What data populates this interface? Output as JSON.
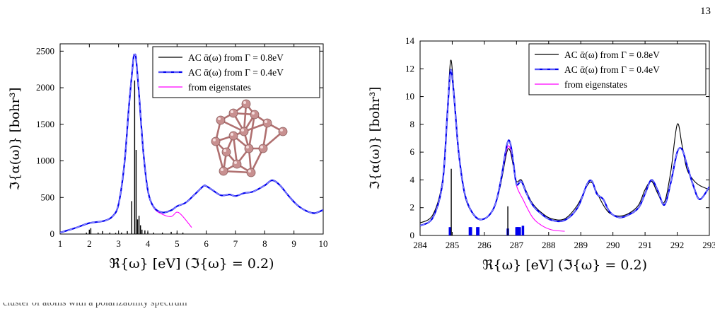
{
  "page": {
    "number": "13"
  },
  "colors": {
    "ac_08": "#000000",
    "ac_04": "#0000ee",
    "ac_04_dash": "#8888ff",
    "eigen": "#ff00ff",
    "molecule_node": "#c89090",
    "molecule_edge": "#b07070"
  },
  "chart_data": [
    {
      "type": "line",
      "xlabel": "ℜ{ω}  [eV]   (ℑ{ω} = 0.2)",
      "ylabel": "ℑ{α(ω)}  [bohr³]",
      "xlim": [
        1,
        10
      ],
      "ylim": [
        0,
        2600
      ],
      "xticks": [
        "1",
        "2",
        "3",
        "4",
        "5",
        "6",
        "7",
        "8",
        "9",
        "10"
      ],
      "yticks": [
        "0",
        "500",
        "1000",
        "1500",
        "2000",
        "2500"
      ],
      "xtick_values": [
        1,
        2,
        3,
        4,
        5,
        6,
        7,
        8,
        9,
        10
      ],
      "ytick_values": [
        0,
        500,
        1000,
        1500,
        2000,
        2500
      ],
      "legend_position": "top-right",
      "legend": [
        {
          "label": "AC  ᾱ(ω) from Γ = 0.8eV",
          "style": "solid-black"
        },
        {
          "label": "AC  ᾱ(ω) from Γ = 0.4eV",
          "style": "dashed-blue"
        },
        {
          "label": "from eigenstates",
          "style": "solid-magenta"
        }
      ],
      "series": [
        {
          "name": "AC ᾱ(ω) from Γ = 0.8eV",
          "x": [
            1.0,
            1.5,
            2.0,
            2.5,
            2.8,
            3.0,
            3.2,
            3.35,
            3.5,
            3.55,
            3.6,
            3.7,
            3.85,
            4.0,
            4.2,
            4.5,
            4.8,
            5.0,
            5.3,
            5.6,
            5.9,
            6.0,
            6.2,
            6.5,
            6.8,
            7.0,
            7.3,
            7.6,
            8.0,
            8.25,
            8.5,
            8.8,
            9.1,
            9.4,
            9.7,
            10.0
          ],
          "y": [
            20,
            80,
            150,
            180,
            240,
            400,
            950,
            1700,
            2350,
            2440,
            2380,
            1900,
            1100,
            600,
            370,
            300,
            330,
            380,
            430,
            540,
            650,
            650,
            600,
            530,
            540,
            520,
            560,
            580,
            660,
            730,
            670,
            530,
            400,
            320,
            290,
            330
          ]
        },
        {
          "name": "AC ᾱ(ω) from Γ = 0.4eV",
          "x": [
            1.0,
            1.5,
            2.0,
            2.5,
            2.8,
            3.0,
            3.2,
            3.35,
            3.5,
            3.55,
            3.6,
            3.7,
            3.85,
            4.0,
            4.2,
            4.5,
            4.8,
            5.0,
            5.3,
            5.6,
            5.9,
            6.0,
            6.2,
            6.5,
            6.8,
            7.0,
            7.3,
            7.6,
            8.0,
            8.25,
            8.5,
            8.8,
            9.1,
            9.4,
            9.7,
            10.0
          ],
          "y": [
            20,
            80,
            150,
            180,
            245,
            410,
            960,
            1720,
            2370,
            2450,
            2390,
            1910,
            1110,
            600,
            370,
            295,
            325,
            380,
            430,
            540,
            655,
            655,
            605,
            530,
            540,
            520,
            560,
            580,
            665,
            735,
            675,
            530,
            400,
            320,
            285,
            330
          ]
        },
        {
          "name": "from eigenstates",
          "x": [
            1.0,
            1.5,
            2.0,
            2.5,
            2.8,
            3.0,
            3.2,
            3.35,
            3.5,
            3.55,
            3.6,
            3.7,
            3.85,
            4.0,
            4.2,
            4.5,
            4.8,
            5.0,
            5.2,
            5.5
          ],
          "y": [
            20,
            80,
            150,
            180,
            245,
            410,
            960,
            1720,
            2370,
            2440,
            2380,
            1900,
            1100,
            590,
            360,
            270,
            240,
            300,
            240,
            90
          ]
        }
      ],
      "sticks": {
        "x": [
          1.9,
          2.0,
          2.05,
          2.3,
          2.45,
          2.7,
          2.9,
          3.1,
          3.3,
          3.45,
          3.55,
          3.6,
          3.65,
          3.7,
          3.75,
          3.8,
          3.9,
          4.0,
          4.2,
          4.5,
          4.8,
          5.0,
          5.2
        ],
        "y": [
          20,
          60,
          80,
          20,
          40,
          20,
          15,
          20,
          40,
          450,
          2100,
          1150,
          200,
          250,
          120,
          60,
          50,
          30,
          20,
          20,
          30,
          20,
          20
        ]
      },
      "inset": "cluster-molecule"
    },
    {
      "type": "line",
      "xlabel": "ℜ{ω}  [eV]   (ℑ{ω} = 0.2)",
      "ylabel": "ℑ{α(ω)}  [bohr³]",
      "xlim": [
        284,
        293
      ],
      "ylim": [
        0,
        14
      ],
      "xticks": [
        "284",
        "285",
        "286",
        "287",
        "288",
        "289",
        "290",
        "291",
        "292",
        "293"
      ],
      "yticks": [
        "0",
        "2",
        "4",
        "6",
        "8",
        "10",
        "12",
        "14"
      ],
      "xtick_values": [
        284,
        285,
        286,
        287,
        288,
        289,
        290,
        291,
        292,
        293
      ],
      "ytick_values": [
        0,
        2,
        4,
        6,
        8,
        10,
        12,
        14
      ],
      "legend_position": "top-right",
      "legend": [
        {
          "label": "AC  ᾱ(ω) from Γ = 0.8eV",
          "style": "solid-black"
        },
        {
          "label": "AC  ᾱ(ω) from Γ = 0.4eV",
          "style": "dashed-blue"
        },
        {
          "label": "from eigenstates",
          "style": "solid-magenta"
        }
      ],
      "series": [
        {
          "name": "AC ᾱ(ω) from Γ = 0.8eV",
          "x": [
            284.0,
            284.4,
            284.7,
            284.85,
            284.95,
            285.05,
            285.2,
            285.4,
            285.7,
            286.0,
            286.3,
            286.5,
            286.7,
            286.8,
            286.9,
            287.0,
            287.15,
            287.3,
            287.5,
            287.8,
            288.1,
            288.5,
            288.9,
            289.2,
            289.35,
            289.5,
            289.7,
            289.9,
            290.2,
            290.5,
            290.8,
            291.0,
            291.2,
            291.4,
            291.6,
            291.8,
            292.0,
            292.15,
            292.3,
            292.5,
            292.7,
            293.0
          ],
          "y": [
            0.9,
            1.5,
            4.0,
            9.0,
            12.6,
            10.5,
            6.0,
            2.8,
            1.4,
            1.2,
            2.0,
            3.6,
            6.0,
            6.1,
            5.0,
            3.9,
            4.0,
            3.2,
            2.3,
            1.6,
            1.2,
            1.2,
            2.2,
            3.6,
            3.8,
            3.1,
            2.2,
            1.6,
            1.4,
            1.6,
            2.2,
            3.3,
            3.9,
            3.0,
            2.4,
            4.6,
            8.0,
            6.5,
            4.8,
            4.0,
            3.6,
            3.3
          ]
        },
        {
          "name": "AC ᾱ(ω) from Γ = 0.4eV",
          "x": [
            284.0,
            284.4,
            284.7,
            284.85,
            284.95,
            285.05,
            285.2,
            285.4,
            285.7,
            286.0,
            286.3,
            286.5,
            286.7,
            286.8,
            286.9,
            287.0,
            287.15,
            287.3,
            287.5,
            287.8,
            288.1,
            288.5,
            288.9,
            289.2,
            289.35,
            289.5,
            289.7,
            289.9,
            290.2,
            290.5,
            290.8,
            291.0,
            291.2,
            291.4,
            291.6,
            291.8,
            292.0,
            292.15,
            292.3,
            292.5,
            292.7,
            293.0
          ],
          "y": [
            0.7,
            1.3,
            3.8,
            8.8,
            11.9,
            10.2,
            6.0,
            2.9,
            1.4,
            1.2,
            2.0,
            3.8,
            6.5,
            6.7,
            5.3,
            3.7,
            3.9,
            3.1,
            2.2,
            1.5,
            1.1,
            1.1,
            2.0,
            3.7,
            3.9,
            3.0,
            2.6,
            1.7,
            1.3,
            1.5,
            2.0,
            3.0,
            4.0,
            3.2,
            2.2,
            3.8,
            6.0,
            6.2,
            5.1,
            3.6,
            2.6,
            3.5
          ]
        },
        {
          "name": "from eigenstates",
          "x": [
            284.0,
            284.4,
            284.7,
            284.85,
            284.95,
            285.05,
            285.2,
            285.4,
            285.7,
            286.0,
            286.3,
            286.5,
            286.7,
            286.8,
            286.9,
            287.0,
            287.2,
            287.5,
            287.8,
            288.1,
            288.5
          ],
          "y": [
            0.7,
            1.3,
            3.8,
            8.8,
            11.9,
            10.2,
            6.0,
            2.9,
            1.4,
            1.2,
            2.0,
            3.8,
            6.2,
            6.3,
            5.2,
            3.6,
            2.6,
            1.3,
            0.7,
            0.4,
            0.3
          ]
        }
      ],
      "sticks_black": {
        "x": [
          284.97,
          286.73
        ],
        "y": [
          4.8,
          2.1
        ]
      },
      "sticks_blue": {
        "x": [
          284.93,
          285.55,
          285.58,
          285.78,
          285.81,
          286.73,
          287.0,
          287.03,
          287.06,
          287.1,
          287.2
        ],
        "y": [
          0.6,
          0.6,
          0.6,
          0.6,
          0.6,
          0.5,
          0.6,
          0.6,
          0.6,
          0.6,
          0.7
        ]
      }
    }
  ],
  "footer_text": "cluster of atoms with a polarizability spectrum"
}
